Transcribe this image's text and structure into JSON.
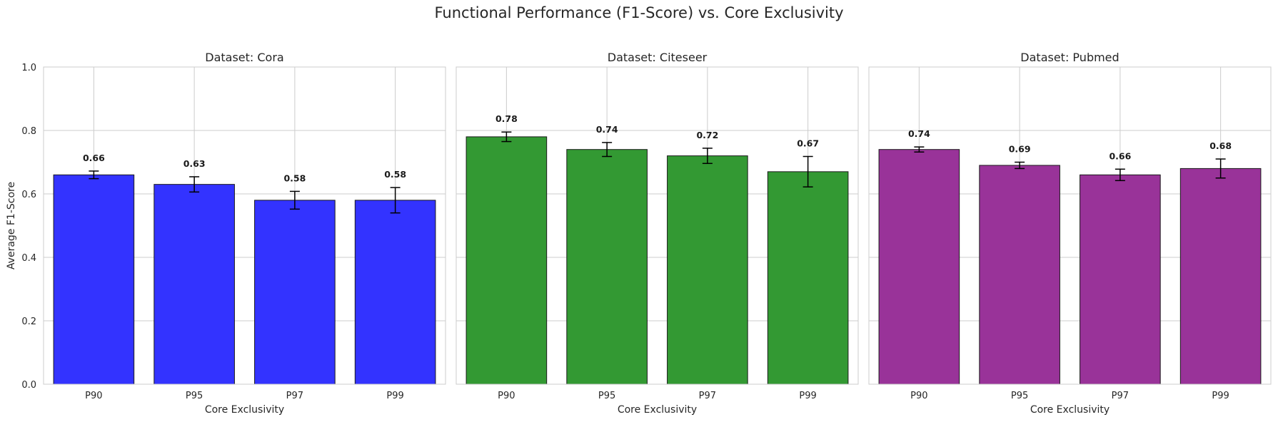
{
  "figure": {
    "title": "Functional Performance (F1-Score) vs. Core Exclusivity"
  },
  "chart_data": [
    {
      "type": "bar",
      "title": "Dataset: Cora",
      "xlabel": "Core Exclusivity",
      "ylabel": "Average F1-Score",
      "categories": [
        "P90",
        "P95",
        "P97",
        "P99"
      ],
      "values": [
        0.66,
        0.63,
        0.58,
        0.58
      ],
      "errors": [
        0.012,
        0.024,
        0.028,
        0.04
      ],
      "value_labels": [
        "0.66",
        "0.63",
        "0.58",
        "0.58"
      ],
      "color": "#3333ff",
      "ylim": [
        0,
        1.0
      ],
      "yticks": [
        "0.0",
        "0.2",
        "0.4",
        "0.6",
        "0.8",
        "1.0"
      ],
      "grid": true
    },
    {
      "type": "bar",
      "title": "Dataset: Citeseer",
      "xlabel": "Core Exclusivity",
      "ylabel": "",
      "categories": [
        "P90",
        "P95",
        "P97",
        "P99"
      ],
      "values": [
        0.78,
        0.74,
        0.72,
        0.67
      ],
      "errors": [
        0.015,
        0.022,
        0.024,
        0.048
      ],
      "value_labels": [
        "0.78",
        "0.74",
        "0.72",
        "0.67"
      ],
      "color": "#339933",
      "ylim": [
        0,
        1.0
      ],
      "yticks": [],
      "grid": true
    },
    {
      "type": "bar",
      "title": "Dataset: Pubmed",
      "xlabel": "Core Exclusivity",
      "ylabel": "",
      "categories": [
        "P90",
        "P95",
        "P97",
        "P99"
      ],
      "values": [
        0.74,
        0.69,
        0.66,
        0.68
      ],
      "errors": [
        0.008,
        0.01,
        0.018,
        0.03
      ],
      "value_labels": [
        "0.74",
        "0.69",
        "0.66",
        "0.68"
      ],
      "color": "#993399",
      "ylim": [
        0,
        1.0
      ],
      "yticks": [],
      "grid": true
    }
  ]
}
